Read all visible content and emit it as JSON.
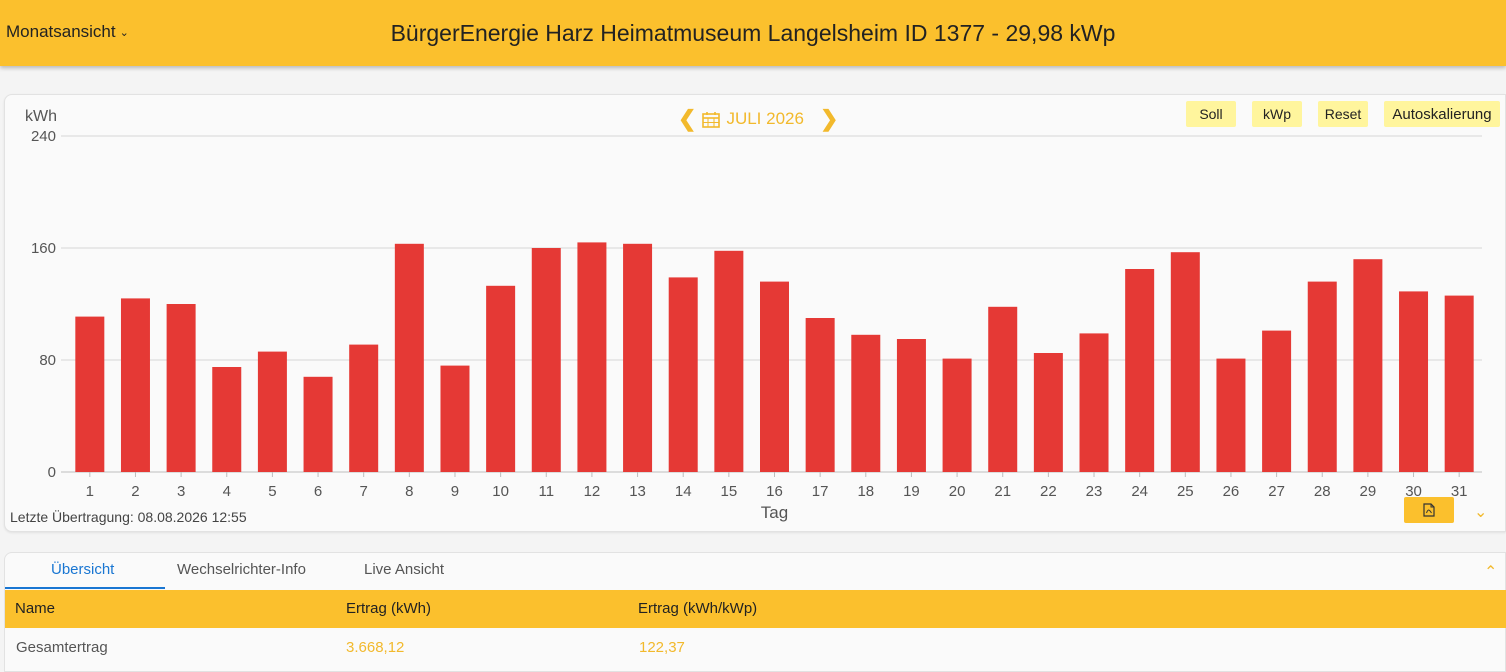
{
  "header": {
    "view_label": "Monatsansicht",
    "title": "BürgerEnergie Harz Heimatmuseum Langelsheim ID 1377 - 29,98 kWp"
  },
  "chart_nav": {
    "month_label": "JULI 2026"
  },
  "toolbar": {
    "soll": "Soll",
    "kwp": "kWp",
    "reset": "Reset",
    "autoscale": "Autoskalierung"
  },
  "chart_data": {
    "type": "bar",
    "ylabel": "kWh",
    "xlabel": "Tag",
    "ylim": [
      0,
      240
    ],
    "yticks": [
      "0",
      "80",
      "160",
      "240"
    ],
    "categories": [
      "1",
      "2",
      "3",
      "4",
      "5",
      "6",
      "7",
      "8",
      "9",
      "10",
      "11",
      "12",
      "13",
      "14",
      "15",
      "16",
      "17",
      "18",
      "19",
      "20",
      "21",
      "22",
      "23",
      "24",
      "25",
      "26",
      "27",
      "28",
      "29",
      "30",
      "31"
    ],
    "values": [
      111,
      124,
      120,
      75,
      86,
      68,
      91,
      163,
      76,
      133,
      160,
      164,
      163,
      139,
      158,
      136,
      110,
      98,
      95,
      81,
      118,
      85,
      99,
      145,
      157,
      81,
      101,
      136,
      152,
      129,
      126
    ],
    "bar_color": "#e53935",
    "grid": true
  },
  "footer": {
    "last_transfer": "Letzte Übertragung: 08.08.2026 12:55"
  },
  "icons": {
    "pdf": "pdf-export-icon",
    "collapse": "chevron-down-icon",
    "expand": "chevron-up-icon",
    "calendar": "calendar-icon"
  },
  "tabs": [
    {
      "label": "Übersicht",
      "active": true
    },
    {
      "label": "Wechselrichter-Info",
      "active": false
    },
    {
      "label": "Live Ansicht",
      "active": false
    }
  ],
  "table": {
    "headers": [
      "Name",
      "Ertrag (kWh)",
      "Ertrag (kWh/kWp)"
    ],
    "rows": [
      [
        "Gesamtertrag",
        "3.668,12",
        "122,37"
      ]
    ]
  }
}
